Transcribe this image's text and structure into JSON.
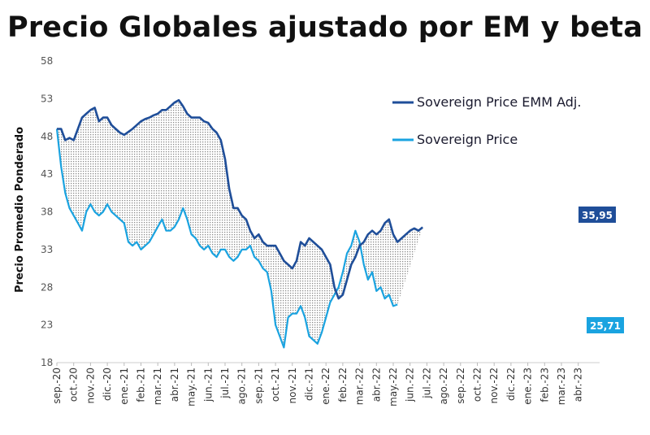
{
  "chart_data": {
    "type": "line",
    "title": "Precio Globales ajustado por EM y beta",
    "xlabel": "",
    "ylabel": "Precio Promedio Ponderado",
    "ylim": [
      18,
      58
    ],
    "yticks": [
      18,
      23,
      28,
      33,
      38,
      43,
      48,
      53,
      58
    ],
    "categories": [
      "sep.-20",
      "oct.-20",
      "nov.-20",
      "dic.-20",
      "ene.-21",
      "feb.-21",
      "mar.-21",
      "abr.-21",
      "may.-21",
      "jun.-21",
      "jul.-21",
      "ago.-21",
      "sep.-21",
      "oct.-21",
      "nov.-21",
      "dic.-21",
      "ene.-22",
      "feb.-22",
      "mar.-22",
      "abr.-22",
      "may.-22",
      "jun.-22",
      "jul.-22",
      "ago.-22",
      "sep.-22",
      "oct.-22",
      "nov.-22",
      "dic.-22",
      "ene.-23",
      "feb.-23",
      "mar.-23",
      "abr.-23"
    ],
    "series": [
      {
        "name": "Sovereign Price EMM Adj.",
        "color": "#1f4e99",
        "values": [
          [
            0,
            49
          ],
          [
            0.25,
            49
          ],
          [
            0.5,
            47.5
          ],
          [
            0.75,
            47.8
          ],
          [
            1,
            47.5
          ],
          [
            1.25,
            49
          ],
          [
            1.5,
            50.5
          ],
          [
            1.75,
            51
          ],
          [
            2,
            51.5
          ],
          [
            2.25,
            51.8
          ],
          [
            2.5,
            50
          ],
          [
            2.75,
            50.5
          ],
          [
            3,
            50.5
          ],
          [
            3.25,
            49.5
          ],
          [
            3.5,
            49
          ],
          [
            3.75,
            48.5
          ],
          [
            4,
            48.2
          ],
          [
            4.25,
            48.6
          ],
          [
            4.5,
            49
          ],
          [
            4.75,
            49.5
          ],
          [
            5,
            50
          ],
          [
            5.25,
            50.3
          ],
          [
            5.5,
            50.5
          ],
          [
            5.75,
            50.8
          ],
          [
            6,
            51
          ],
          [
            6.25,
            51.5
          ],
          [
            6.5,
            51.5
          ],
          [
            6.75,
            52
          ],
          [
            7,
            52.5
          ],
          [
            7.25,
            52.8
          ],
          [
            7.5,
            52
          ],
          [
            7.75,
            51
          ],
          [
            8,
            50.5
          ],
          [
            8.25,
            50.5
          ],
          [
            8.5,
            50.5
          ],
          [
            8.75,
            50
          ],
          [
            9,
            49.8
          ],
          [
            9.25,
            49
          ],
          [
            9.5,
            48.5
          ],
          [
            9.75,
            47.5
          ],
          [
            10,
            45
          ],
          [
            10.25,
            41
          ],
          [
            10.5,
            38.5
          ],
          [
            10.75,
            38.5
          ],
          [
            11,
            37.5
          ],
          [
            11.25,
            37
          ],
          [
            11.5,
            35.5
          ],
          [
            11.75,
            34.5
          ],
          [
            12,
            35
          ],
          [
            12.25,
            34
          ],
          [
            12.5,
            33.5
          ],
          [
            12.75,
            33.5
          ],
          [
            13,
            33.5
          ],
          [
            13.25,
            32.5
          ],
          [
            13.5,
            31.5
          ],
          [
            13.75,
            31
          ],
          [
            14,
            30.5
          ],
          [
            14.25,
            31.5
          ],
          [
            14.5,
            34
          ],
          [
            14.75,
            33.5
          ],
          [
            15,
            34.5
          ],
          [
            15.25,
            34
          ],
          [
            15.5,
            33.5
          ],
          [
            15.75,
            33
          ],
          [
            16,
            32
          ],
          [
            16.25,
            31
          ],
          [
            16.5,
            28
          ],
          [
            16.75,
            26.5
          ],
          [
            17,
            27
          ],
          [
            17.25,
            29
          ],
          [
            17.5,
            31
          ],
          [
            17.75,
            32
          ],
          [
            18,
            33.5
          ],
          [
            18.25,
            34
          ],
          [
            18.5,
            35
          ],
          [
            18.75,
            35.5
          ],
          [
            19,
            35
          ],
          [
            19.25,
            35.5
          ],
          [
            19.5,
            36.5
          ],
          [
            19.75,
            37
          ],
          [
            20,
            35
          ],
          [
            20.25,
            34
          ],
          [
            20.5,
            34.5
          ],
          [
            20.75,
            35
          ],
          [
            21,
            35.5
          ],
          [
            21.25,
            35.8
          ],
          [
            21.5,
            35.5
          ],
          [
            21.75,
            35.95
          ]
        ],
        "end_label": "35,95"
      },
      {
        "name": "Sovereign Price",
        "color": "#1aa3e0",
        "values": [
          [
            0,
            49
          ],
          [
            0.25,
            44
          ],
          [
            0.5,
            40.5
          ],
          [
            0.75,
            38.5
          ],
          [
            1,
            37.5
          ],
          [
            1.25,
            36.5
          ],
          [
            1.5,
            35.5
          ],
          [
            1.75,
            38
          ],
          [
            2,
            39
          ],
          [
            2.25,
            38
          ],
          [
            2.5,
            37.5
          ],
          [
            2.75,
            38
          ],
          [
            3,
            39
          ],
          [
            3.25,
            38
          ],
          [
            3.5,
            37.5
          ],
          [
            3.75,
            37
          ],
          [
            4,
            36.5
          ],
          [
            4.25,
            34
          ],
          [
            4.5,
            33.5
          ],
          [
            4.75,
            34
          ],
          [
            5,
            33
          ],
          [
            5.25,
            33.5
          ],
          [
            5.5,
            34
          ],
          [
            5.75,
            35
          ],
          [
            6,
            36
          ],
          [
            6.25,
            37
          ],
          [
            6.5,
            35.5
          ],
          [
            6.75,
            35.5
          ],
          [
            7,
            36
          ],
          [
            7.25,
            37
          ],
          [
            7.5,
            38.5
          ],
          [
            7.75,
            37
          ],
          [
            8,
            35
          ],
          [
            8.25,
            34.5
          ],
          [
            8.5,
            33.5
          ],
          [
            8.75,
            33
          ],
          [
            9,
            33.5
          ],
          [
            9.25,
            32.5
          ],
          [
            9.5,
            32
          ],
          [
            9.75,
            33
          ],
          [
            10,
            33
          ],
          [
            10.25,
            32
          ],
          [
            10.5,
            31.5
          ],
          [
            10.75,
            32
          ],
          [
            11,
            33
          ],
          [
            11.25,
            33
          ],
          [
            11.5,
            33.5
          ],
          [
            11.75,
            32
          ],
          [
            12,
            31.5
          ],
          [
            12.25,
            30.5
          ],
          [
            12.5,
            30
          ],
          [
            12.75,
            27.5
          ],
          [
            13,
            23
          ],
          [
            13.25,
            21.5
          ],
          [
            13.5,
            20
          ],
          [
            13.75,
            24
          ],
          [
            14,
            24.5
          ],
          [
            14.25,
            24.5
          ],
          [
            14.5,
            25.5
          ],
          [
            14.75,
            24
          ],
          [
            15,
            21.5
          ],
          [
            15.25,
            21
          ],
          [
            15.5,
            20.5
          ],
          [
            15.75,
            22
          ],
          [
            16,
            24
          ],
          [
            16.25,
            26
          ],
          [
            16.5,
            27
          ],
          [
            16.75,
            28
          ],
          [
            17,
            30
          ],
          [
            17.25,
            32.5
          ],
          [
            17.5,
            33.5
          ],
          [
            17.75,
            35.5
          ],
          [
            18,
            34
          ],
          [
            18.25,
            31
          ],
          [
            18.5,
            29
          ],
          [
            18.75,
            30
          ],
          [
            19,
            27.5
          ],
          [
            19.25,
            28
          ],
          [
            19.5,
            26.5
          ],
          [
            19.75,
            27
          ],
          [
            20,
            25.5
          ],
          [
            20.25,
            25.71
          ]
        ],
        "end_label": "25,71"
      }
    ],
    "legend": "upper-right"
  },
  "colors": {
    "dark_series": "#1f4e99",
    "light_series": "#1aa3e0",
    "fill_pattern": "#9a9a9a"
  }
}
